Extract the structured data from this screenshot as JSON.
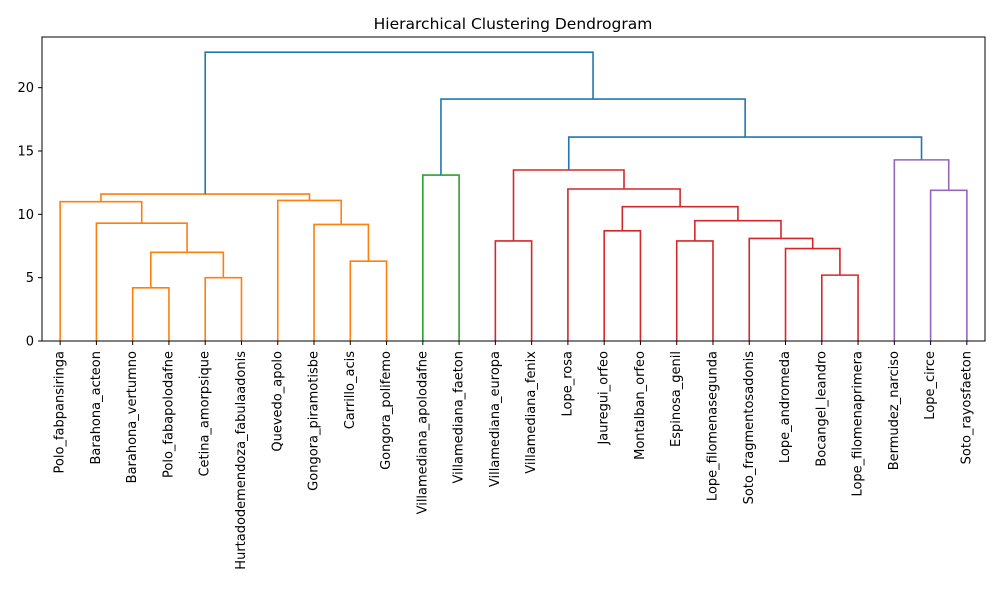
{
  "chart_data": {
    "type": "dendrogram",
    "title": "Hierarchical Clustering Dendrogram",
    "xlabel": "",
    "ylabel": "",
    "ylim": [
      0,
      24
    ],
    "yticks": [
      0,
      5,
      10,
      15,
      20
    ],
    "grid": false,
    "leaves": [
      "Polo_fabpansiringa",
      "Barahona_acteon",
      "Barahona_vertumno",
      "Polo_fabapolodafne",
      "Cetina_amorpsique",
      "Hurtadodemendoza_fabulaadonis",
      "Quevedo_apolo",
      "Gongora_piramotisbe",
      "Carrillo_acis",
      "Gongora_polifemo",
      "Villamediana_apolodafne",
      "Villamediana_faeton",
      "Villamediana_europa",
      "Villamediana_fenix",
      "Lope_rosa",
      "Jauregui_orfeo",
      "Montalban_orfeo",
      "Espinosa_genil",
      "Lope_filomenasegunda",
      "Soto_fragmentosadonis",
      "Lope_andromeda",
      "Bocangel_leandro",
      "Lope_filomenaprimera",
      "Bermudez_narciso",
      "Lope_circe",
      "Soto_rayosfaeton"
    ],
    "merges": [
      {
        "id": "m1",
        "left": "L2",
        "right": "L3",
        "height": 4.2,
        "color": "#ff7f0e"
      },
      {
        "id": "m2",
        "left": "L4",
        "right": "L5",
        "height": 5.0,
        "color": "#ff7f0e"
      },
      {
        "id": "m3",
        "left": "m1",
        "right": "m2",
        "height": 7.0,
        "color": "#ff7f0e"
      },
      {
        "id": "m4",
        "left": "L1",
        "right": "m3",
        "height": 9.3,
        "color": "#ff7f0e"
      },
      {
        "id": "m5",
        "left": "L0",
        "right": "m4",
        "height": 11.0,
        "color": "#ff7f0e"
      },
      {
        "id": "m6",
        "left": "L8",
        "right": "L9",
        "height": 6.3,
        "color": "#ff7f0e"
      },
      {
        "id": "m7",
        "left": "L7",
        "right": "m6",
        "height": 9.2,
        "color": "#ff7f0e"
      },
      {
        "id": "m8",
        "left": "L6",
        "right": "m7",
        "height": 11.1,
        "color": "#ff7f0e"
      },
      {
        "id": "m9",
        "left": "m5",
        "right": "m8",
        "height": 11.6,
        "color": "#ff7f0e"
      },
      {
        "id": "m10",
        "left": "L10",
        "right": "L11",
        "height": 13.1,
        "color": "#2ca02c"
      },
      {
        "id": "m11",
        "left": "L12",
        "right": "L13",
        "height": 7.9,
        "color": "#d62728"
      },
      {
        "id": "m12",
        "left": "L15",
        "right": "L16",
        "height": 8.7,
        "color": "#d62728"
      },
      {
        "id": "m13",
        "left": "L17",
        "right": "L18",
        "height": 7.9,
        "color": "#d62728"
      },
      {
        "id": "m14",
        "left": "L21",
        "right": "L22",
        "height": 5.2,
        "color": "#d62728"
      },
      {
        "id": "m15",
        "left": "L20",
        "right": "m14",
        "height": 7.3,
        "color": "#d62728"
      },
      {
        "id": "m16",
        "left": "L19",
        "right": "m15",
        "height": 8.1,
        "color": "#d62728"
      },
      {
        "id": "m17",
        "left": "m13",
        "right": "m16",
        "height": 9.5,
        "color": "#d62728"
      },
      {
        "id": "m18",
        "left": "m12",
        "right": "m17",
        "height": 10.6,
        "color": "#d62728"
      },
      {
        "id": "m19",
        "left": "L14",
        "right": "m18",
        "height": 12.0,
        "color": "#d62728"
      },
      {
        "id": "m20",
        "left": "m11",
        "right": "m19",
        "height": 13.5,
        "color": "#d62728"
      },
      {
        "id": "m21",
        "left": "L24",
        "right": "L25",
        "height": 11.9,
        "color": "#9467bd"
      },
      {
        "id": "m22",
        "left": "L23",
        "right": "m21",
        "height": 14.3,
        "color": "#9467bd"
      },
      {
        "id": "m23",
        "left": "m20",
        "right": "m22",
        "height": 16.1,
        "color": "#1f77b4"
      },
      {
        "id": "m24",
        "left": "m10",
        "right": "m23",
        "height": 19.1,
        "color": "#1f77b4"
      },
      {
        "id": "m25",
        "left": "m9",
        "right": "m24",
        "height": 22.8,
        "color": "#1f77b4"
      }
    ]
  }
}
